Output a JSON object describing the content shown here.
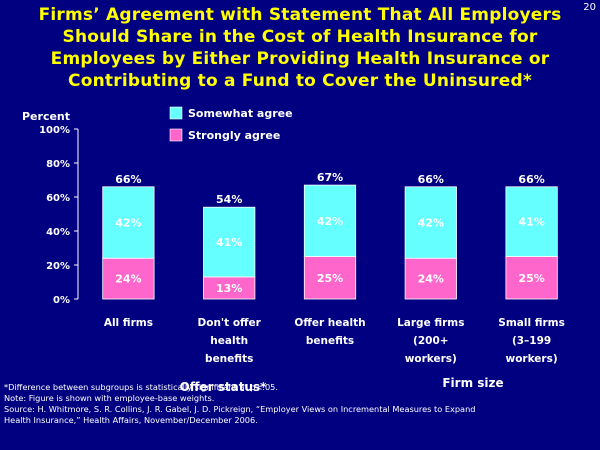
{
  "slide_number": "20",
  "title_lines": [
    "Firms’ Agreement with Statement That All Employers",
    "Should Share in the Cost of Health Insurance for",
    "Employees by Either Providing Health Insurance or",
    "Contributing to a Fund to Cover the Uninsured*"
  ],
  "footnotes": [
    "*Difference between subgroups is statistically significant at p<.05.",
    "Note: Figure is shown with employee-base weights.",
    "Source: H. Whitmore, S. R. Collins, J. R. Gabel, J. D. Pickreign, “Employer Views on Incremental Measures to Expand",
    "Health Insurance,” Health Affairs, November/December 2006."
  ],
  "group_labels": [
    "Offer status*",
    "Firm size"
  ],
  "colors": {
    "background": "#000080",
    "title": "#ffff00",
    "somewhat_agree": "#66ffff",
    "strongly_agree": "#ff66cc"
  },
  "chart_data": {
    "type": "bar",
    "stacked": true,
    "ylabel": "Percent",
    "ylim": [
      0,
      100
    ],
    "yticks": [
      "0%",
      "20%",
      "40%",
      "60%",
      "80%",
      "100%"
    ],
    "categories": [
      [
        "All firms"
      ],
      [
        "Don't offer",
        "health",
        "benefits"
      ],
      [
        "Offer health",
        "benefits"
      ],
      [
        "Large firms",
        "(200+",
        "workers)"
      ],
      [
        "Small firms",
        "(3–199",
        "workers)"
      ]
    ],
    "series": [
      {
        "name": "Strongly agree",
        "values": [
          24,
          13,
          25,
          24,
          25
        ],
        "labels": [
          "24%",
          "13%",
          "25%",
          "24%",
          "25%"
        ],
        "color": "#ff66cc"
      },
      {
        "name": "Somewhat agree",
        "values": [
          42,
          41,
          42,
          42,
          41
        ],
        "labels": [
          "42%",
          "41%",
          "42%",
          "42%",
          "41%"
        ],
        "color": "#66ffff"
      }
    ],
    "totals": [
      66,
      54,
      67,
      66,
      66
    ],
    "total_labels": [
      "66%",
      "54%",
      "67%",
      "66%",
      "66%"
    ],
    "legend": [
      {
        "name": "Somewhat agree",
        "color": "#66ffff"
      },
      {
        "name": "Strongly agree",
        "color": "#ff66cc"
      }
    ],
    "legend_position": "top-left"
  }
}
